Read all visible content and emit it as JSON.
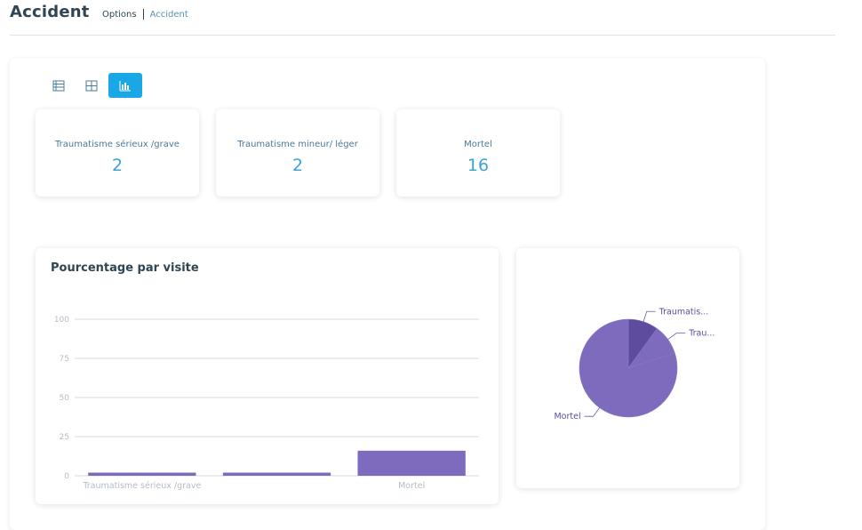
{
  "header": {
    "title": "Accident",
    "breadcrumb": {
      "options": "Options",
      "current": "Accident"
    }
  },
  "view_toggle": {
    "buttons": [
      {
        "icon": "list-icon",
        "active": false
      },
      {
        "icon": "table-icon",
        "active": false
      },
      {
        "icon": "bar-chart-icon",
        "active": true
      }
    ],
    "active_color": "#1aa7e6"
  },
  "kpis": [
    {
      "label": "Traumatisme sérieux /grave",
      "value": "2"
    },
    {
      "label": "Traumatisme mineur/ léger",
      "value": "2"
    },
    {
      "label": "Mortel",
      "value": "16"
    }
  ],
  "colors": {
    "series": "#7e6bbd",
    "series_dark": "#5e4d9e",
    "kpi_value": "#3ba3d6"
  },
  "chart_data": [
    {
      "type": "bar",
      "title": "Pourcentage par visite",
      "categories": [
        "Traumatisme sérieux /grave",
        "Traumatisme mineur/ léger",
        "Mortel"
      ],
      "category_labels_shown": [
        "Traumatisme sérieux /grave",
        "",
        "Mortel"
      ],
      "values": [
        2,
        2,
        16
      ],
      "ylim": [
        0,
        100
      ],
      "yticks": [
        "0",
        "25",
        "50",
        "75",
        "100"
      ],
      "grid": true
    },
    {
      "type": "pie",
      "slices": [
        {
          "label": "Traumatis...",
          "value": 2
        },
        {
          "label": "Trau...",
          "value": 2
        },
        {
          "label": "Mortel",
          "value": 16
        }
      ]
    }
  ]
}
